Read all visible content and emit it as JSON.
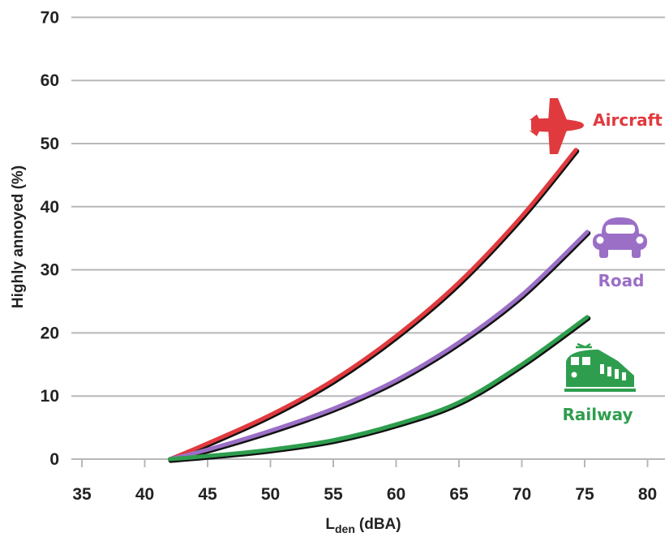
{
  "chart_data": {
    "type": "line",
    "title": "",
    "xlabel": {
      "main": "L",
      "sub": "den",
      "unit": "(dBA)"
    },
    "ylabel": "Highly annoyed (%)",
    "xlim": [
      33,
      82
    ],
    "ylim": [
      0,
      70
    ],
    "x_ticks": [
      35,
      40,
      45,
      50,
      55,
      60,
      65,
      70,
      75,
      80
    ],
    "y_ticks": [
      0,
      10,
      20,
      30,
      40,
      50,
      60,
      70
    ],
    "grid": "horizontal",
    "legend": "inline labels at curve ends",
    "series": [
      {
        "name": "Aircraft",
        "color": "#e03a3e",
        "icon": "airplane-icon",
        "x": [
          42,
          45,
          50,
          55,
          60,
          65,
          70,
          74.3
        ],
        "y": [
          0,
          2.5,
          7,
          12.5,
          19.5,
          28,
          38.5,
          49
        ]
      },
      {
        "name": "Road",
        "color": "#9b6fc6",
        "icon": "car-icon",
        "x": [
          42,
          45,
          50,
          55,
          60,
          65,
          70,
          75.2
        ],
        "y": [
          0,
          1.5,
          4.5,
          8,
          12.5,
          18.5,
          26,
          36
        ]
      },
      {
        "name": "Railway",
        "color": "#2e9e4e",
        "icon": "train-icon",
        "x": [
          42,
          45,
          50,
          55,
          60,
          65,
          70,
          75.2
        ],
        "y": [
          0,
          0.5,
          1.5,
          3,
          5.5,
          9,
          15,
          22.5
        ]
      }
    ]
  }
}
